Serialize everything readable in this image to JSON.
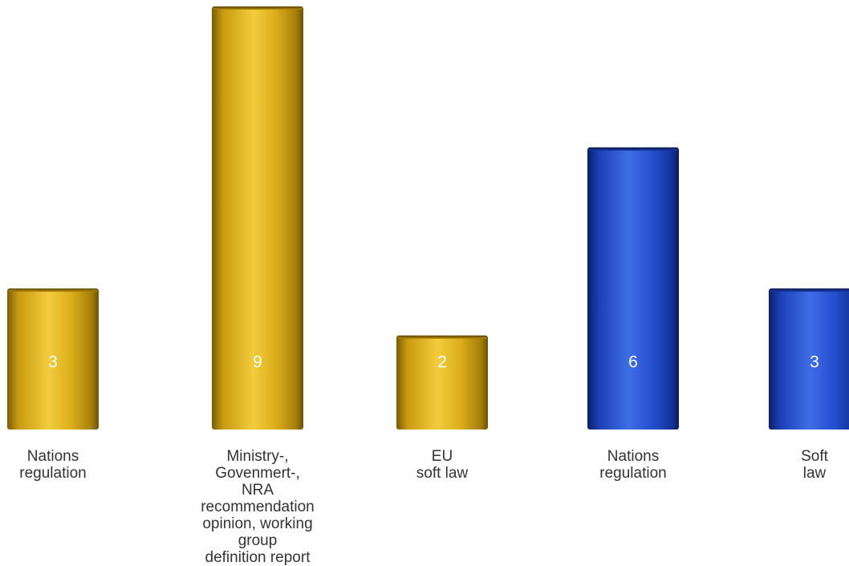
{
  "chart_data": {
    "type": "bar",
    "categories": [
      [
        "Nations",
        "regulation"
      ],
      [
        "Ministry-, Govenmert-,",
        "NRA recommendation",
        "opinion, working group",
        "definition report"
      ],
      [
        "EU",
        "soft law"
      ],
      [
        "Nations",
        "regulation"
      ],
      [
        "Soft",
        "law"
      ]
    ],
    "values": [
      3,
      9,
      2,
      6,
      3
    ],
    "value_labels": [
      "3",
      "9",
      "2",
      "6",
      "3"
    ],
    "bar_colors": [
      "gold",
      "gold",
      "gold",
      "blue",
      "blue"
    ],
    "colors": {
      "gold_light": "#f6d24a",
      "gold_mid": "#d4a514",
      "gold_dark": "#8a6a06",
      "blue_light": "#4f7ef0",
      "blue_mid": "#1c45c4",
      "blue_dark": "#0c2478"
    },
    "title": "",
    "xlabel": "",
    "ylabel": "",
    "grid": false,
    "legend": "none"
  }
}
